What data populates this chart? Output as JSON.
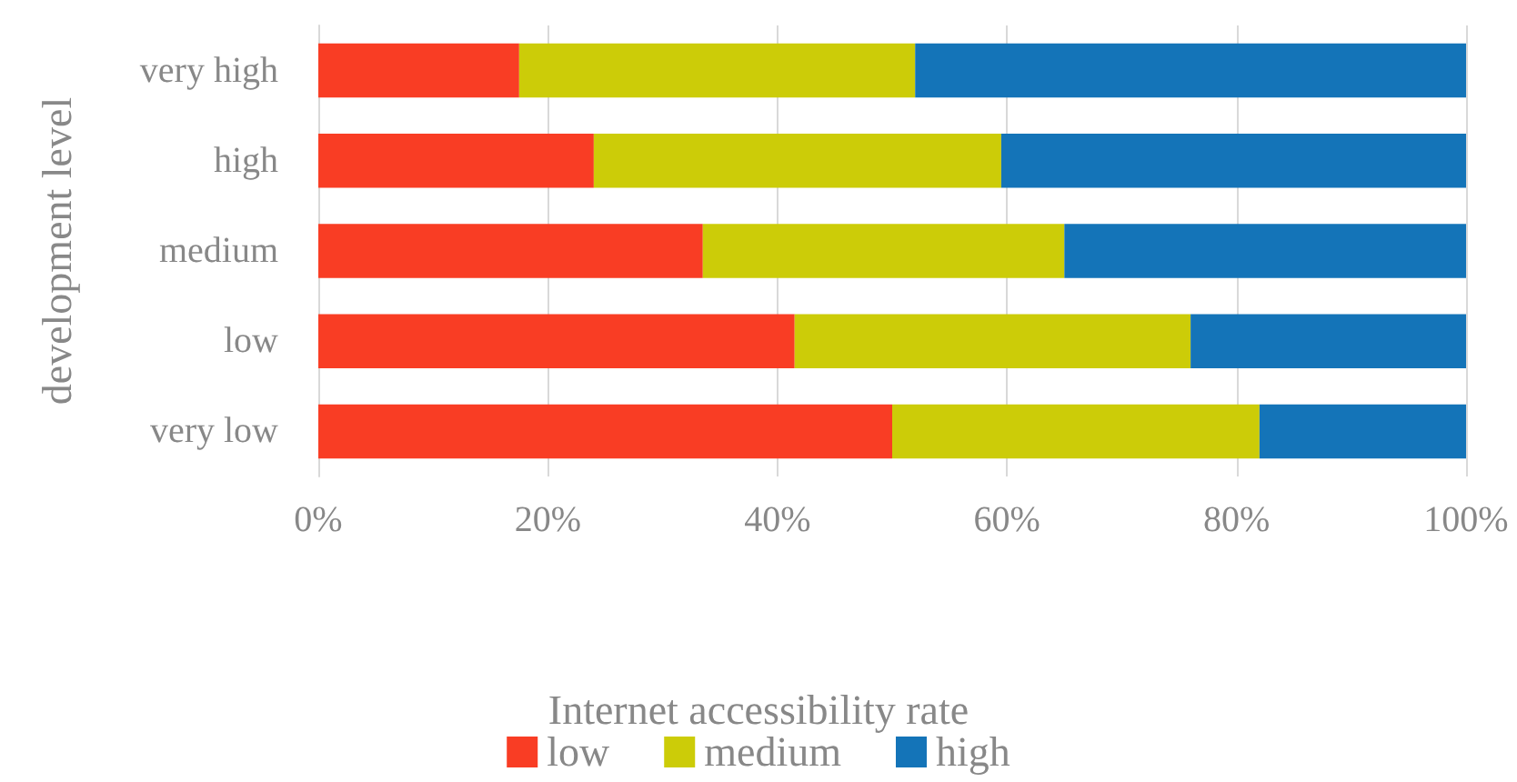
{
  "chart_data": {
    "type": "bar",
    "orientation": "horizontal",
    "stacked": true,
    "ylabel": "development level",
    "legend_title": "Internet accessibility rate",
    "categories": [
      "very high",
      "high",
      "medium",
      "low",
      "very low"
    ],
    "series": [
      {
        "name": "low",
        "color": "#f93d24",
        "values": [
          17.5,
          24,
          33.5,
          41.5,
          50
        ]
      },
      {
        "name": "medium",
        "color": "#cccc08",
        "values": [
          34.5,
          35.5,
          31.5,
          34.5,
          32
        ]
      },
      {
        "name": "high",
        "color": "#1474b8",
        "values": [
          48,
          40.5,
          35,
          24,
          18
        ]
      }
    ],
    "xlim": [
      0,
      100
    ],
    "xticks": [
      {
        "value": 0,
        "label": "0%"
      },
      {
        "value": 20,
        "label": "20%"
      },
      {
        "value": 40,
        "label": "40%"
      },
      {
        "value": 60,
        "label": "60%"
      },
      {
        "value": 80,
        "label": "80%"
      },
      {
        "value": 100,
        "label": "100%"
      }
    ],
    "grid": "x",
    "legend": "bottom"
  }
}
